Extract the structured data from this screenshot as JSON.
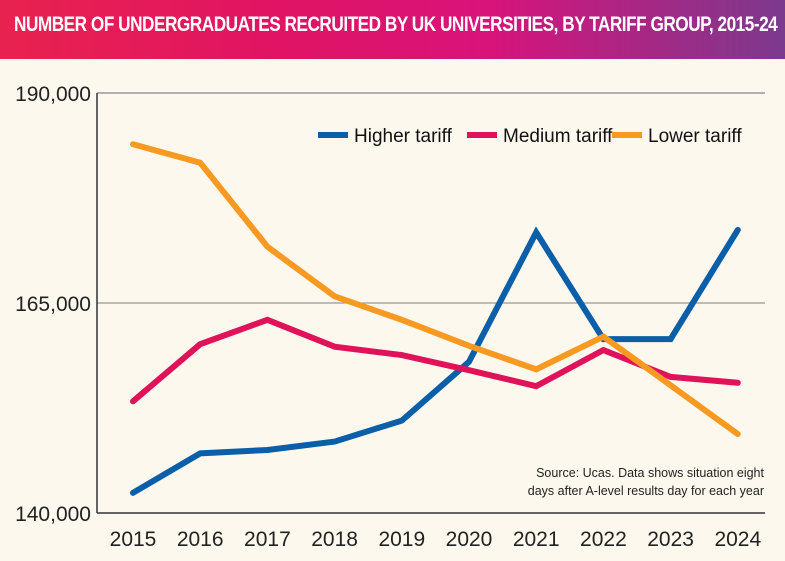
{
  "chart_data": {
    "type": "line",
    "title": "NUMBER OF UNDERGRADUATES RECRUITED BY UK UNIVERSITIES, BY TARIFF GROUP, 2015-24",
    "x": [
      "2015",
      "2016",
      "2017",
      "2018",
      "2019",
      "2020",
      "2021",
      "2022",
      "2023",
      "2024"
    ],
    "ylim": [
      140000,
      190000
    ],
    "yticks": [
      140000,
      165000,
      190000
    ],
    "ytick_labels": [
      "140,000",
      "165,000",
      "190,000"
    ],
    "grid": "horizontal at 165,000",
    "legend_placement": "top-right",
    "series": [
      {
        "name": "Higher tariff",
        "color": "#0a5fa8",
        "values": [
          142400,
          147100,
          147500,
          148500,
          151000,
          158000,
          173400,
          160700,
          160700,
          173700
        ]
      },
      {
        "name": "Medium tariff",
        "color": "#e0125a",
        "values": [
          153300,
          160100,
          163000,
          159800,
          158800,
          157000,
          155100,
          159400,
          156200,
          155500
        ]
      },
      {
        "name": "Lower tariff",
        "color": "#f89a22",
        "values": [
          183900,
          181700,
          171700,
          165800,
          163000,
          159900,
          157100,
          161000,
          155200,
          149400
        ]
      }
    ],
    "source_lines": [
      "Source: Ucas. Data shows situation eight",
      "days after A-level results day for each year"
    ]
  }
}
